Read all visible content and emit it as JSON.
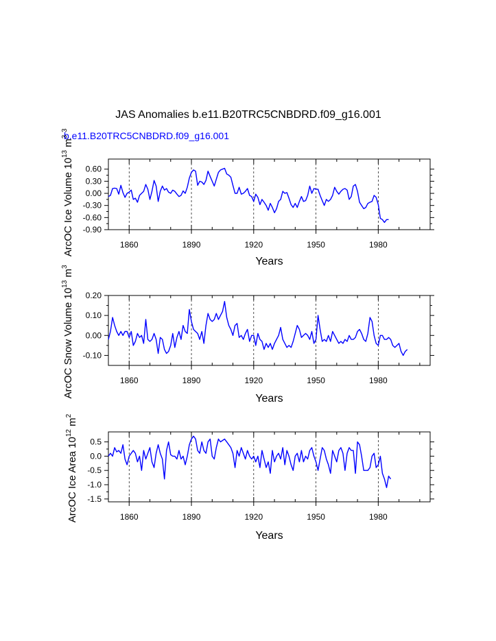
{
  "title": "JAS Anomalies b.e11.B20TRC5CNBDRD.f09_g16.001",
  "legend_label": "b.e11.B20TRC5CNBDRD.f09_g16.001",
  "overlay_label": "3",
  "colors": {
    "series": "#0000ff",
    "axis": "#000000",
    "grid": "#000000"
  },
  "chart_data": [
    {
      "type": "line",
      "name": "ice-volume",
      "title": "",
      "xlabel": "Years",
      "ylabel_main": "ArcOC Ice Volume 10",
      "ylabel_exp": "13",
      "ylabel_unit": " m",
      "ylabel_unit_exp": "3",
      "xlim": [
        1850,
        2005
      ],
      "ylim": [
        -0.9,
        0.85
      ],
      "xticks": [
        1860,
        1890,
        1920,
        1950,
        1980
      ],
      "xtick_labels": [
        "1860",
        "1890",
        "1920",
        "1950",
        "1980"
      ],
      "yticks": [
        -0.9,
        -0.6,
        -0.3,
        0.0,
        0.3,
        0.6
      ],
      "ytick_labels": [
        "-0.90",
        "-0.60",
        "-0.30",
        "0.00",
        "0.30",
        "0.60"
      ],
      "grid_x": [
        1860,
        1890,
        1920,
        1950,
        1980
      ],
      "start_year": 1850,
      "values": [
        -0.08,
        -0.05,
        0.12,
        0.13,
        0.12,
        -0.02,
        0.2,
        0.02,
        -0.1,
        0.0,
        0.03,
        0.08,
        -0.15,
        -0.12,
        -0.22,
        -0.05,
        0.0,
        0.05,
        0.22,
        0.1,
        -0.15,
        0.05,
        0.32,
        0.18,
        -0.2,
        0.05,
        0.18,
        0.08,
        0.12,
        0.03,
        0.0,
        0.08,
        0.05,
        -0.02,
        -0.08,
        -0.05,
        0.06,
        0.0,
        0.15,
        0.38,
        0.52,
        0.58,
        0.55,
        0.2,
        0.3,
        0.28,
        0.22,
        0.32,
        0.55,
        0.42,
        0.3,
        0.18,
        0.35,
        0.52,
        0.58,
        0.6,
        0.62,
        0.48,
        0.45,
        0.4,
        0.2,
        0.0,
        0.0,
        0.15,
        -0.02,
        0.0,
        0.05,
        0.12,
        -0.05,
        -0.08,
        -0.2,
        -0.02,
        -0.1,
        -0.28,
        -0.15,
        -0.22,
        -0.3,
        -0.42,
        -0.25,
        -0.35,
        -0.48,
        -0.38,
        -0.2,
        -0.15,
        0.05,
        0.0,
        0.02,
        -0.12,
        -0.28,
        -0.35,
        -0.25,
        -0.35,
        -0.2,
        -0.08,
        -0.2,
        -0.18,
        -0.05,
        0.18,
        0.0,
        0.12,
        0.1,
        0.1,
        -0.05,
        -0.18,
        -0.3,
        -0.15,
        -0.2,
        -0.15,
        -0.05,
        0.15,
        0.05,
        -0.02,
        0.05,
        0.1,
        0.12,
        0.08,
        -0.15,
        -0.08,
        0.18,
        0.22,
        0.05,
        -0.22,
        -0.3,
        -0.38,
        -0.35,
        -0.25,
        -0.22,
        -0.2,
        -0.05,
        -0.1,
        -0.28,
        -0.62,
        -0.65,
        -0.72,
        -0.65,
        -0.65
      ]
    },
    {
      "type": "line",
      "name": "snow-volume",
      "title": "",
      "xlabel": "Years",
      "ylabel_main": "ArcOC Snow Volume 10",
      "ylabel_exp": "13",
      "ylabel_unit": " m",
      "ylabel_unit_exp": "3",
      "xlim": [
        1850,
        2005
      ],
      "ylim": [
        -0.15,
        0.2
      ],
      "xticks": [
        1860,
        1890,
        1920,
        1950,
        1980
      ],
      "xtick_labels": [
        "1860",
        "1890",
        "1920",
        "1950",
        "1980"
      ],
      "yticks": [
        -0.1,
        0.0,
        0.1,
        0.2
      ],
      "ytick_labels": [
        "-0.10",
        "0.00",
        "0.10",
        "0.20"
      ],
      "grid_x": [
        1860,
        1890,
        1920,
        1950,
        1980
      ],
      "start_year": 1850,
      "values": [
        -0.02,
        0.02,
        0.09,
        0.05,
        0.02,
        0.0,
        0.02,
        0.0,
        0.02,
        0.02,
        -0.01,
        0.02,
        -0.05,
        -0.03,
        0.01,
        -0.01,
        0.0,
        -0.04,
        0.08,
        -0.02,
        -0.03,
        -0.02,
        0.01,
        -0.02,
        -0.09,
        -0.01,
        -0.02,
        -0.07,
        -0.09,
        -0.08,
        -0.05,
        0.01,
        -0.06,
        -0.01,
        0.02,
        -0.02,
        0.05,
        0.02,
        0.01,
        0.13,
        0.07,
        0.03,
        0.02,
        0.01,
        -0.02,
        0.02,
        -0.04,
        0.05,
        0.11,
        0.08,
        0.07,
        0.08,
        0.11,
        0.08,
        0.1,
        0.12,
        0.17,
        0.09,
        0.05,
        0.03,
        0.0,
        0.05,
        0.06,
        -0.01,
        0.0,
        -0.02,
        0.01,
        0.03,
        -0.03,
        0.0,
        0.0,
        -0.05,
        0.01,
        -0.02,
        -0.03,
        -0.07,
        -0.04,
        -0.06,
        -0.04,
        -0.07,
        -0.04,
        -0.02,
        0.0,
        0.04,
        -0.02,
        -0.04,
        -0.06,
        -0.05,
        -0.06,
        -0.03,
        0.01,
        0.05,
        0.03,
        -0.01,
        0.0,
        0.01,
        0.0,
        -0.02,
        0.02,
        -0.04,
        -0.02,
        0.1,
        0.03,
        -0.03,
        -0.02,
        -0.03,
        0.0,
        -0.03,
        0.02,
        0.0,
        -0.02,
        -0.04,
        -0.03,
        -0.04,
        -0.02,
        -0.03,
        0.0,
        -0.02,
        -0.02,
        -0.01,
        0.02,
        0.03,
        0.01,
        -0.02,
        -0.03,
        0.01,
        0.09,
        0.07,
        0.0,
        -0.04,
        -0.05,
        0.0,
        0.0,
        -0.02,
        -0.02,
        -0.01,
        -0.02,
        -0.05,
        -0.06,
        -0.05,
        -0.04,
        -0.08,
        -0.1,
        -0.08,
        -0.07
      ]
    },
    {
      "type": "line",
      "name": "ice-area",
      "title": "",
      "xlabel": "Years",
      "ylabel_main": "ArcOC Ice Area 10",
      "ylabel_exp": "12",
      "ylabel_unit": " m",
      "ylabel_unit_exp": "2",
      "xlim": [
        1850,
        2005
      ],
      "ylim": [
        -1.6,
        0.85
      ],
      "xticks": [
        1860,
        1890,
        1920,
        1950,
        1980
      ],
      "xtick_labels": [
        "1860",
        "1890",
        "1920",
        "1950",
        "1980"
      ],
      "yticks": [
        -1.5,
        -1.0,
        -0.5,
        0.0,
        0.5
      ],
      "ytick_labels": [
        "-1.5",
        "-1.0",
        "-0.5",
        "0.0",
        "0.5"
      ],
      "grid_x": [
        1860,
        1890,
        1920,
        1950,
        1980
      ],
      "start_year": 1850,
      "values": [
        0.0,
        0.1,
        0.0,
        0.3,
        0.15,
        0.2,
        0.1,
        0.4,
        -0.1,
        -0.3,
        0.0,
        0.1,
        0.2,
        0.1,
        -0.2,
        0.0,
        -0.5,
        0.2,
        -0.1,
        0.1,
        0.3,
        -0.2,
        -0.4,
        0.1,
        0.4,
        0.1,
        -0.1,
        -0.8,
        0.2,
        0.5,
        0.05,
        0.0,
        0.0,
        -0.1,
        0.2,
        -0.1,
        0.0,
        -0.3,
        0.0,
        0.4,
        0.6,
        0.7,
        0.6,
        0.2,
        0.1,
        0.5,
        0.2,
        0.1,
        0.5,
        0.6,
        0.0,
        -0.1,
        0.3,
        0.6,
        0.5,
        0.55,
        0.6,
        0.5,
        0.4,
        0.3,
        0.1,
        -0.4,
        0.2,
        0.0,
        0.3,
        0.1,
        -0.1,
        0.2,
        0.0,
        -0.1,
        0.0,
        -0.2,
        0.0,
        -0.4,
        0.2,
        -0.1,
        -0.4,
        -0.2,
        -0.6,
        0.2,
        -0.2,
        0.0,
        0.1,
        -0.1,
        0.3,
        -0.3,
        0.2,
        0.0,
        -0.3,
        -0.5,
        0.0,
        0.1,
        -0.2,
        0.2,
        -0.2,
        0.0,
        -0.1,
        0.2,
        0.3,
        0.0,
        -0.2,
        -0.5,
        -0.1,
        0.3,
        0.2,
        -0.1,
        -0.3,
        -0.6,
        0.2,
        0.0,
        -0.2,
        0.2,
        0.3,
        0.1,
        -0.5,
        0.1,
        0.3,
        0.2,
        0.2,
        -0.6,
        0.5,
        0.4,
        0.0,
        -0.5,
        -0.5,
        -0.5,
        -0.4,
        0.0,
        0.1,
        -0.4,
        -0.3,
        0.0,
        -0.6,
        -0.8,
        -1.1,
        -0.7,
        -0.8
      ]
    }
  ]
}
